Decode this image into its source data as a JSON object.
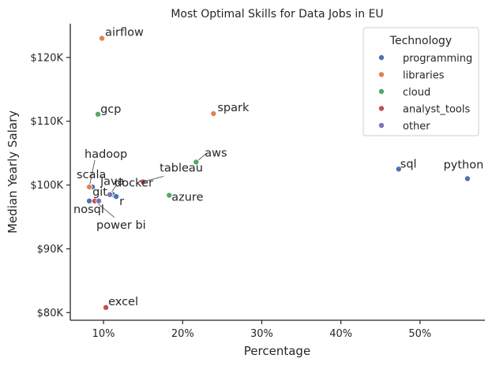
{
  "chart_data": {
    "type": "scatter",
    "title": "Most Optimal Skills for Data Jobs in EU",
    "xlabel": "Percentage",
    "ylabel": "Median Yearly Salary",
    "xlim": [
      5.8,
      58.2
    ],
    "ylim": [
      78800,
      125300
    ],
    "x_ticks": [
      {
        "value": 10,
        "label": "10%"
      },
      {
        "value": 20,
        "label": "20%"
      },
      {
        "value": 30,
        "label": "30%"
      },
      {
        "value": 40,
        "label": "40%"
      },
      {
        "value": 50,
        "label": "50%"
      }
    ],
    "y_ticks": [
      {
        "value": 80000,
        "label": "$80K"
      },
      {
        "value": 90000,
        "label": "$90K"
      },
      {
        "value": 100000,
        "label": "$100K"
      },
      {
        "value": 110000,
        "label": "$110K"
      },
      {
        "value": 120000,
        "label": "$120K"
      }
    ],
    "grid": false,
    "legend": {
      "title": "Technology",
      "placement": "top-right",
      "entries": [
        {
          "name": "programming",
          "color": "#4c72b0"
        },
        {
          "name": "libraries",
          "color": "#dd8452"
        },
        {
          "name": "cloud",
          "color": "#55a868"
        },
        {
          "name": "analyst_tools",
          "color": "#c44e52"
        },
        {
          "name": "other",
          "color": "#8172b3"
        }
      ]
    },
    "points": [
      {
        "skill": "python",
        "x": 56.0,
        "y": 101000,
        "group": "programming"
      },
      {
        "skill": "sql",
        "x": 47.3,
        "y": 102500,
        "group": "programming"
      },
      {
        "skill": "java",
        "x": 11.2,
        "y": 98500,
        "group": "programming"
      },
      {
        "skill": "r",
        "x": 11.6,
        "y": 98200,
        "group": "programming"
      },
      {
        "skill": "scala",
        "x": 8.6,
        "y": 99700,
        "group": "programming"
      },
      {
        "skill": "nosql",
        "x": 8.2,
        "y": 97500,
        "group": "programming"
      },
      {
        "skill": "airflow",
        "x": 9.8,
        "y": 123000,
        "group": "libraries"
      },
      {
        "skill": "spark",
        "x": 23.9,
        "y": 111200,
        "group": "libraries"
      },
      {
        "skill": "hadoop",
        "x": 8.2,
        "y": 99700,
        "group": "libraries"
      },
      {
        "skill": "gcp",
        "x": 9.3,
        "y": 111100,
        "group": "cloud"
      },
      {
        "skill": "aws",
        "x": 21.7,
        "y": 103600,
        "group": "cloud"
      },
      {
        "skill": "azure",
        "x": 18.3,
        "y": 98400,
        "group": "cloud"
      },
      {
        "skill": "tableau",
        "x": 15.0,
        "y": 100500,
        "group": "analyst_tools"
      },
      {
        "skill": "excel",
        "x": 10.3,
        "y": 80800,
        "group": "analyst_tools"
      },
      {
        "skill": "power bi",
        "x": 8.9,
        "y": 97500,
        "group": "analyst_tools"
      },
      {
        "skill": "docker",
        "x": 10.8,
        "y": 98500,
        "group": "other"
      },
      {
        "skill": "git",
        "x": 9.4,
        "y": 97500,
        "group": "other"
      }
    ]
  }
}
